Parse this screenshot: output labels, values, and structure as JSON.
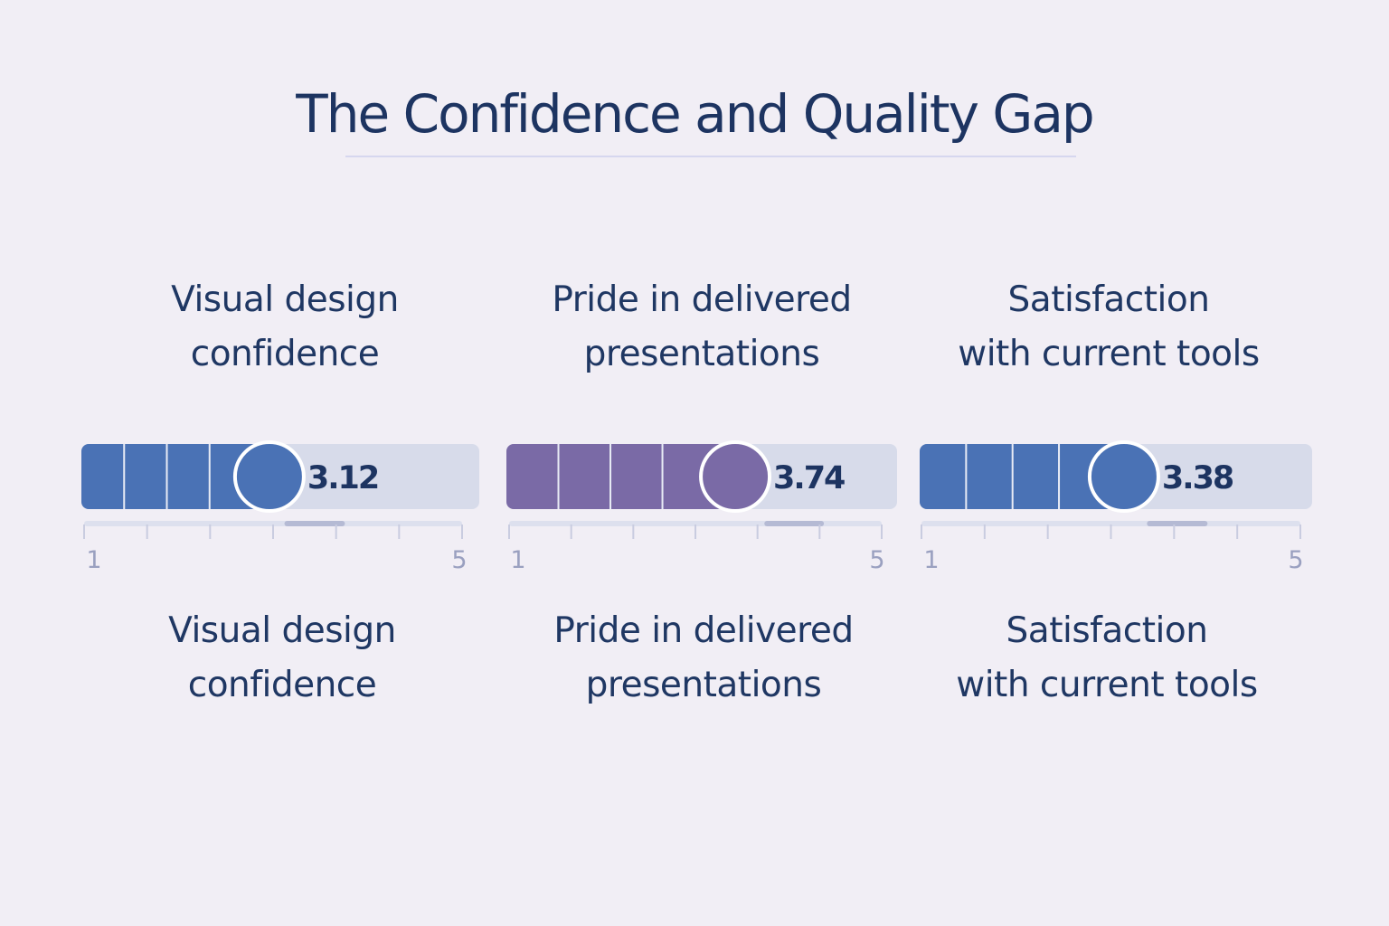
{
  "chart_data": {
    "type": "bar",
    "title": "The Confidence and Quality Gap",
    "scale_min": 1,
    "scale_max": 5,
    "tick_labels": [
      "1",
      "5"
    ],
    "series": [
      {
        "label_line1": "Visual design",
        "label_line2": "confidence",
        "value": 3.12,
        "value_label": "3.12",
        "color": "#4a72b5"
      },
      {
        "label_line1": "Pride in delivered",
        "label_line2": "presentations",
        "value": 3.74,
        "value_label": "3.74",
        "color": "#7a6aa6"
      },
      {
        "label_line1": "Satisfaction",
        "label_line2": "with current tools",
        "value": 3.38,
        "value_label": "3.38",
        "color": "#4a72b5"
      }
    ]
  }
}
